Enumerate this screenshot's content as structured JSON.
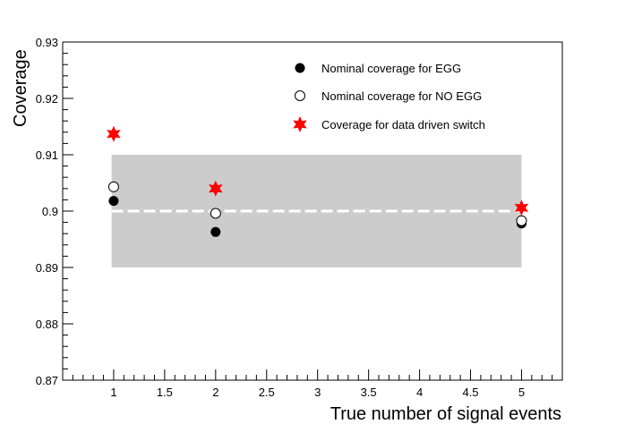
{
  "chart_data": {
    "type": "scatter",
    "xlabel": "True number of signal events",
    "ylabel": "Coverage",
    "xlim": [
      0.5,
      5.4
    ],
    "ylim": [
      0.87,
      0.93
    ],
    "x_ticks": [
      1,
      1.5,
      2,
      2.5,
      3,
      3.5,
      4,
      4.5,
      5
    ],
    "x_tick_labels": [
      "1",
      "1.5",
      "2",
      "2.5",
      "3",
      "3.5",
      "4",
      "4.5",
      "5"
    ],
    "y_ticks": [
      0.87,
      0.88,
      0.89,
      0.9,
      0.91,
      0.92,
      0.93
    ],
    "y_tick_labels": [
      "0.87",
      "0.88",
      "0.89",
      "0.9",
      "0.91",
      "0.92",
      "0.93"
    ],
    "grid": false,
    "legend_position": "top-right",
    "band": {
      "x": [
        0.98,
        5.0
      ],
      "y": [
        0.89,
        0.91
      ],
      "color": "#cccccc"
    },
    "reference_line": {
      "y": 0.9,
      "style": "dashed",
      "color": "#ffffff"
    },
    "series": [
      {
        "name": "Nominal coverage for EGG",
        "marker": "filled-circle",
        "color": "#000000",
        "x": [
          1,
          2,
          5
        ],
        "y": [
          0.9018,
          0.8963,
          0.8978
        ]
      },
      {
        "name": "Nominal coverage for NO EGG",
        "marker": "open-circle",
        "color": "#000000",
        "x": [
          1,
          2,
          5
        ],
        "y": [
          0.9043,
          0.8996,
          0.8983
        ]
      },
      {
        "name": "Coverage for data driven switch",
        "marker": "star",
        "color": "#ff0000",
        "x": [
          1,
          2,
          5
        ],
        "y": [
          0.9137,
          0.904,
          0.9006
        ]
      }
    ]
  }
}
